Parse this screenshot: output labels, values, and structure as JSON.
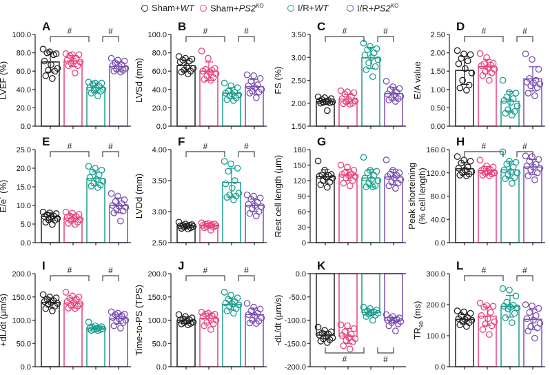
{
  "legend": [
    {
      "prefix": "Sham+",
      "italic": "WT",
      "sup": "",
      "color": "#222222"
    },
    {
      "prefix": "Sham+",
      "italic": "PS2",
      "sup": "KO",
      "color": "#e8417a"
    },
    {
      "prefix": "I/R+",
      "italic": "WT",
      "sup": "",
      "color": "#1a9e8f"
    },
    {
      "prefix": "I/R+",
      "italic": "PS2",
      "sup": "KO",
      "color": "#7a4fb0"
    }
  ],
  "chart_data": [
    {
      "type": "bar",
      "panel": "A",
      "ylabel": "LVEF (%)",
      "ylim": [
        0,
        100
      ],
      "yticks": [
        0,
        20,
        40,
        60,
        80,
        100
      ],
      "decimals": 1,
      "means": [
        70,
        71,
        42,
        65
      ],
      "sd": [
        11,
        6,
        5,
        5
      ],
      "points": [
        [
          84,
          81,
          79,
          80,
          78,
          71,
          67,
          63,
          61,
          60,
          55,
          52
        ],
        [
          79,
          78,
          78,
          77,
          74,
          72,
          71,
          70,
          69,
          66,
          66,
          58
        ],
        [
          48,
          47,
          47,
          46,
          44,
          42,
          41,
          40,
          39,
          38,
          36,
          33
        ],
        [
          74,
          72,
          71,
          69,
          67,
          66,
          65,
          63,
          62,
          61,
          60,
          59
        ]
      ],
      "significance": [
        {
          "groups": [
            0,
            2
          ],
          "label": "#"
        },
        {
          "groups": [
            2,
            3
          ],
          "label": "#"
        }
      ],
      "sig_position": "top"
    },
    {
      "type": "bar",
      "panel": "B",
      "ylabel": "LVSd (mm)",
      "ylim": [
        0,
        100
      ],
      "yticks": [
        0,
        20,
        40,
        60,
        80,
        100
      ],
      "decimals": 1,
      "means": [
        66,
        60,
        36,
        43
      ],
      "sd": [
        6,
        10,
        6,
        8
      ],
      "points": [
        [
          76,
          74,
          73,
          72,
          71,
          70,
          65,
          63,
          61,
          60,
          59,
          57
        ],
        [
          82,
          74,
          63,
          62,
          61,
          60,
          59,
          57,
          55,
          53,
          51,
          50
        ],
        [
          47,
          44,
          42,
          38,
          37,
          36,
          35,
          34,
          33,
          31,
          29,
          28
        ],
        [
          56,
          55,
          52,
          49,
          45,
          44,
          42,
          40,
          38,
          37,
          36,
          31
        ]
      ],
      "significance": [
        {
          "groups": [
            0,
            2
          ],
          "label": "#"
        },
        {
          "groups": [
            2,
            3
          ],
          "label": "#"
        }
      ],
      "sig_position": "top"
    },
    {
      "type": "bar",
      "panel": "C",
      "ylabel": "FS (%)",
      "ylim": [
        1.5,
        3.5
      ],
      "yticks": [
        1.5,
        2.0,
        2.5,
        3.0,
        3.5
      ],
      "decimals": 2,
      "means": [
        2.03,
        2.09,
        2.99,
        2.21
      ],
      "sd": [
        0.06,
        0.1,
        0.23,
        0.14
      ],
      "points": [
        [
          2.14,
          2.12,
          2.1,
          2.08,
          2.06,
          2.05,
          2.04,
          2.03,
          2.02,
          2.01,
          2.0,
          1.84
        ],
        [
          2.27,
          2.25,
          2.23,
          2.2,
          2.15,
          2.1,
          2.08,
          2.05,
          2.03,
          2.0,
          1.99,
          1.98
        ],
        [
          3.31,
          3.24,
          3.19,
          3.17,
          3.1,
          3.05,
          3.0,
          2.95,
          2.88,
          2.8,
          2.73,
          2.58
        ],
        [
          2.48,
          2.36,
          2.32,
          2.3,
          2.24,
          2.2,
          2.18,
          2.15,
          2.12,
          2.1,
          2.07,
          2.04
        ]
      ],
      "significance": [
        {
          "groups": [
            0,
            2
          ],
          "label": "#"
        },
        {
          "groups": [
            2,
            3
          ],
          "label": "#"
        }
      ],
      "sig_position": "top"
    },
    {
      "type": "bar",
      "panel": "D",
      "ylabel": "E/A value",
      "ylim": [
        0,
        2.5
      ],
      "yticks": [
        0,
        0.5,
        1.0,
        1.5,
        2.0,
        2.5
      ],
      "decimals": 2,
      "means": [
        1.52,
        1.62,
        0.68,
        1.29
      ],
      "sd": [
        0.38,
        0.2,
        0.27,
        0.33
      ],
      "points": [
        [
          2.06,
          1.97,
          1.95,
          1.85,
          1.78,
          1.7,
          1.57,
          1.45,
          1.25,
          1.12,
          1.04,
          0.98
        ],
        [
          1.98,
          1.87,
          1.72,
          1.7,
          1.67,
          1.65,
          1.6,
          1.55,
          1.5,
          1.45,
          1.38,
          1.25
        ],
        [
          1.25,
          0.92,
          0.9,
          0.8,
          0.75,
          0.7,
          0.65,
          0.55,
          0.45,
          0.4,
          0.35,
          0.3
        ],
        [
          1.97,
          1.82,
          1.55,
          1.3,
          1.25,
          1.2,
          1.18,
          1.15,
          1.1,
          1.05,
          0.9,
          0.83
        ]
      ],
      "significance": [
        {
          "groups": [
            0,
            2
          ],
          "label": "#"
        },
        {
          "groups": [
            2,
            3
          ],
          "label": "#"
        }
      ],
      "sig_position": "top"
    },
    {
      "type": "bar",
      "panel": "E",
      "ylabel": "E/e´ (%)",
      "ylim": [
        0,
        25
      ],
      "yticks": [
        0,
        5,
        10,
        15,
        20,
        25
      ],
      "decimals": 1,
      "means": [
        7,
        6.6,
        17.2,
        10
      ],
      "sd": [
        1,
        1,
        1.8,
        2
      ],
      "points": [
        [
          8.2,
          8.0,
          7.8,
          7.5,
          7.2,
          7.0,
          6.8,
          6.5,
          6.2,
          6.0,
          5.5,
          4.9
        ],
        [
          8.2,
          7.9,
          7.6,
          7.2,
          7.0,
          6.8,
          6.5,
          6.2,
          5.9,
          5.5,
          5.2,
          4.9
        ],
        [
          20.5,
          20.0,
          19.5,
          19.0,
          18.2,
          17.5,
          17.0,
          16.5,
          16.0,
          15.5,
          15.2,
          14.8
        ],
        [
          13.2,
          12.5,
          11.5,
          11.0,
          10.5,
          10.0,
          9.8,
          9.5,
          9.0,
          8.5,
          8.0,
          5.8
        ]
      ],
      "significance": [
        {
          "groups": [
            0,
            2
          ],
          "label": "#"
        },
        {
          "groups": [
            2,
            3
          ],
          "label": "#"
        }
      ],
      "sig_position": "top"
    },
    {
      "type": "bar",
      "panel": "F",
      "ylabel": "LVDd (mm)",
      "ylim": [
        2.5,
        4.0
      ],
      "yticks": [
        2.5,
        3.0,
        3.5,
        4.0
      ],
      "decimals": 2,
      "means": [
        2.77,
        2.78,
        3.47,
        3.1
      ],
      "sd": [
        0.03,
        0.03,
        0.23,
        0.1
      ],
      "points": [
        [
          2.83,
          2.8,
          2.79,
          2.78,
          2.78,
          2.77,
          2.77,
          2.76,
          2.75,
          2.74,
          2.73,
          2.72
        ],
        [
          2.82,
          2.81,
          2.8,
          2.8,
          2.79,
          2.78,
          2.78,
          2.77,
          2.76,
          2.75,
          2.74,
          2.7
        ],
        [
          3.81,
          3.77,
          3.7,
          3.65,
          3.5,
          3.45,
          3.38,
          3.3,
          3.27,
          3.25,
          3.23,
          3.19
        ],
        [
          3.27,
          3.25,
          3.22,
          3.2,
          3.15,
          3.12,
          3.1,
          3.08,
          3.05,
          3.0,
          2.97,
          2.93
        ]
      ],
      "significance": [
        {
          "groups": [
            0,
            2
          ],
          "label": "#"
        },
        {
          "groups": [
            2,
            3
          ],
          "label": "#"
        }
      ],
      "sig_position": "top"
    },
    {
      "type": "bar",
      "panel": "G",
      "ylabel": "Rest cell length (μm)",
      "ylim": [
        0,
        180
      ],
      "yticks": [
        0,
        30,
        60,
        90,
        120,
        150,
        180
      ],
      "decimals": 0,
      "means": [
        128,
        131,
        125,
        127
      ],
      "sd": [
        13,
        11,
        17,
        15
      ],
      "points": [
        [
          158,
          140,
          132,
          131,
          130,
          129,
          127,
          125,
          120,
          117,
          112,
          107
        ],
        [
          150,
          146,
          140,
          135,
          133,
          132,
          130,
          128,
          125,
          120,
          115,
          110
        ],
        [
          165,
          140,
          138,
          135,
          130,
          125,
          122,
          120,
          115,
          110,
          108,
          108
        ],
        [
          160,
          140,
          135,
          133,
          130,
          128,
          125,
          122,
          118,
          115,
          110,
          105
        ]
      ],
      "significance": [],
      "sig_position": "top"
    },
    {
      "type": "bar",
      "panel": "H",
      "ylabel": "Peak shorteining",
      "ylabel2": "(% cell length)",
      "ylim": [
        0,
        160
      ],
      "yticks": [
        0,
        40,
        80,
        120,
        160
      ],
      "decimals": 1,
      "means": [
        127,
        124,
        125,
        130
      ],
      "sd": [
        10,
        7,
        15,
        13
      ],
      "points": [
        [
          148,
          142,
          140,
          137,
          130,
          128,
          125,
          122,
          120,
          118,
          116,
          115
        ],
        [
          142,
          132,
          130,
          127,
          125,
          124,
          122,
          120,
          119,
          118,
          116,
          115
        ],
        [
          156,
          140,
          138,
          135,
          130,
          125,
          122,
          120,
          117,
          112,
          110,
          102
        ],
        [
          149,
          148,
          143,
          140,
          135,
          132,
          130,
          128,
          125,
          120,
          115,
          108
        ]
      ],
      "significance": [
        {
          "groups": [
            0,
            2
          ],
          "label": "#"
        },
        {
          "groups": [
            2,
            3
          ],
          "label": "#"
        }
      ],
      "sig_position": "top"
    },
    {
      "type": "bar",
      "panel": "I",
      "ylabel": "+dL/dt (μm/s)",
      "ylim": [
        0,
        200
      ],
      "yticks": [
        0,
        50,
        100,
        150,
        200
      ],
      "decimals": 1,
      "means": [
        138,
        137,
        83,
        103
      ],
      "sd": [
        10,
        11,
        4,
        10
      ],
      "points": [
        [
          155,
          150,
          148,
          145,
          142,
          140,
          138,
          136,
          135,
          130,
          125,
          120
        ],
        [
          160,
          152,
          150,
          147,
          145,
          140,
          138,
          135,
          132,
          130,
          126,
          125
        ],
        [
          96,
          88,
          86,
          85,
          84,
          83,
          82,
          81,
          80,
          80,
          78,
          78
        ],
        [
          118,
          115,
          113,
          112,
          110,
          106,
          103,
          100,
          97,
          95,
          88,
          83
        ]
      ],
      "significance": [
        {
          "groups": [
            0,
            2
          ],
          "label": "#"
        },
        {
          "groups": [
            2,
            3
          ],
          "label": "#"
        }
      ],
      "sig_position": "top"
    },
    {
      "type": "bar",
      "panel": "J",
      "ylabel": "Time-to-PS (TPS)",
      "ylim": [
        0,
        200
      ],
      "yticks": [
        0,
        50,
        100,
        150,
        200
      ],
      "decimals": 1,
      "means": [
        100,
        104,
        134,
        112
      ],
      "sd": [
        7,
        10,
        12,
        14
      ],
      "points": [
        [
          112,
          108,
          105,
          103,
          101,
          100,
          98,
          96,
          95,
          93,
          92,
          90
        ],
        [
          117,
          115,
          113,
          113,
          110,
          108,
          105,
          100,
          95,
          92,
          88,
          80
        ],
        [
          160,
          154,
          148,
          145,
          140,
          137,
          135,
          133,
          130,
          125,
          120,
          115
        ],
        [
          136,
          128,
          124,
          120,
          115,
          112,
          110,
          105,
          100,
          98,
          94,
          93
        ]
      ],
      "significance": [
        {
          "groups": [
            0,
            2
          ],
          "label": "#"
        },
        {
          "groups": [
            2,
            3
          ],
          "label": "#"
        }
      ],
      "sig_position": "top"
    },
    {
      "type": "bar",
      "panel": "K",
      "ylabel": "-dL/dt (μm/s)",
      "ylim": [
        -200,
        0
      ],
      "yticks": [
        -200,
        -150,
        -100,
        -50,
        0
      ],
      "decimals": 1,
      "means": [
        -132,
        -134,
        -83,
        -100
      ],
      "sd": [
        8,
        16,
        6,
        6
      ],
      "points": [
        [
          -115,
          -122,
          -125,
          -128,
          -130,
          -132,
          -135,
          -138,
          -140,
          -142,
          -145,
          -148
        ],
        [
          -110,
          -112,
          -118,
          -125,
          -130,
          -133,
          -137,
          -140,
          -143,
          -147,
          -155,
          -162
        ],
        [
          -72,
          -75,
          -78,
          -80,
          -82,
          -83,
          -84,
          -85,
          -87,
          -89,
          -92,
          -100
        ],
        [
          -88,
          -92,
          -95,
          -96,
          -98,
          -100,
          -101,
          -103,
          -105,
          -108,
          -112,
          -123
        ]
      ],
      "significance": [
        {
          "groups": [
            0,
            2
          ],
          "label": "#"
        },
        {
          "groups": [
            2,
            3
          ],
          "label": "#"
        }
      ],
      "sig_position": "bottom"
    },
    {
      "type": "bar",
      "panel": "L",
      "ylabel": "TR",
      "ylabel_sub": "90",
      "ylabel_suffix": " (ms)",
      "ylim": [
        0,
        300
      ],
      "yticks": [
        0,
        100,
        200,
        300
      ],
      "decimals": 1,
      "means": [
        153,
        163,
        195,
        153
      ],
      "sd": [
        15,
        30,
        35,
        33
      ],
      "points": [
        [
          180,
          177,
          172,
          165,
          158,
          155,
          152,
          150,
          147,
          142,
          135,
          130
        ],
        [
          205,
          197,
          195,
          192,
          175,
          165,
          155,
          145,
          138,
          132,
          120,
          104
        ],
        [
          252,
          247,
          228,
          208,
          198,
          195,
          192,
          190,
          186,
          172,
          158,
          142
        ],
        [
          200,
          196,
          188,
          175,
          165,
          155,
          150,
          140,
          130,
          125,
          115,
          92
        ]
      ],
      "significance": [
        {
          "groups": [
            0,
            2
          ],
          "label": "#"
        },
        {
          "groups": [
            2,
            3
          ],
          "label": "#"
        }
      ],
      "sig_position": "top"
    }
  ]
}
